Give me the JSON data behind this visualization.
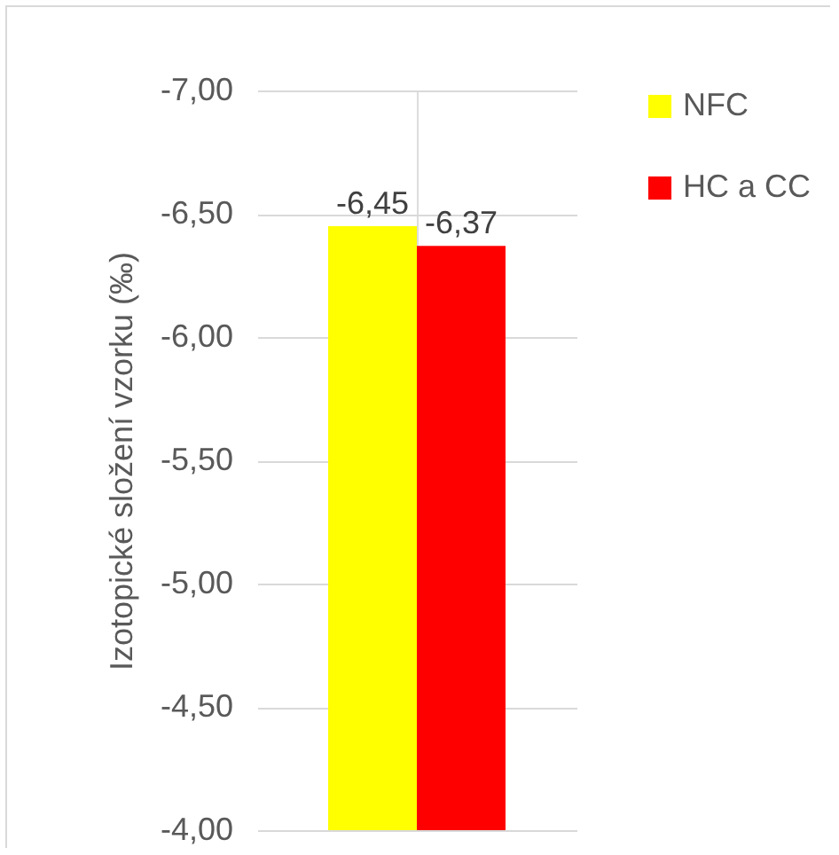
{
  "chart_data": {
    "type": "bar",
    "ylabel": "Izotopické složení vzorku (‰)",
    "categories": [
      null
    ],
    "series": [
      {
        "name": "NFC",
        "color": "#ffff00",
        "values": [
          -6.45
        ],
        "value_labels": [
          "-6,45"
        ]
      },
      {
        "name": "HC a CC",
        "color": "#ff0000",
        "values": [
          -6.37
        ],
        "value_labels": [
          "-6,37"
        ]
      }
    ],
    "ylim": [
      -4,
      -7
    ],
    "yticks": [
      {
        "value": -7,
        "label": "-7,00"
      },
      {
        "value": -6.5,
        "label": "-6,50"
      },
      {
        "value": -6,
        "label": "-6,00"
      },
      {
        "value": -5.5,
        "label": "-5,50"
      },
      {
        "value": -5,
        "label": "-5,00"
      },
      {
        "value": -4.5,
        "label": "-4,50"
      },
      {
        "value": -4,
        "label": "-4,00"
      }
    ],
    "grid": true,
    "legend": "right",
    "tick_labels": "y"
  }
}
